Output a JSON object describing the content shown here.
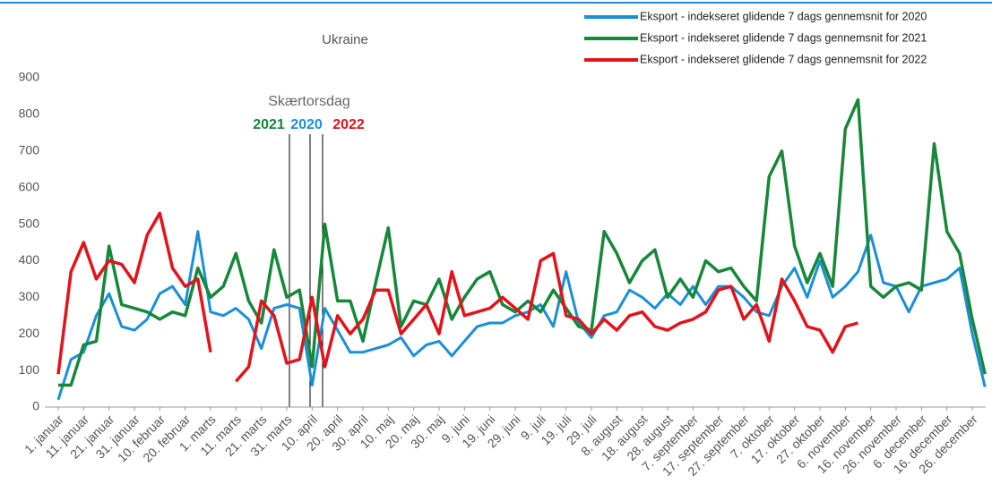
{
  "chart_data": {
    "type": "line",
    "title": "Ukraine",
    "annotation": "Skærtorsdag",
    "annotation_years": [
      {
        "text": "2021",
        "color": "#17873a"
      },
      {
        "text": "2020",
        "color": "#1b8fd6"
      },
      {
        "text": "2022",
        "color": "#e3121b"
      }
    ],
    "categories": [
      "1. januar",
      null,
      "11. januar",
      null,
      "21. januar",
      null,
      "31. januar",
      null,
      "10. februar",
      null,
      "20. februar",
      null,
      "1. marts",
      null,
      "11. marts",
      null,
      "21. marts",
      null,
      "31. marts",
      null,
      "10. april",
      null,
      "20. april",
      null,
      "30. april",
      null,
      "10. maj",
      null,
      "20. maj",
      null,
      "30. maj",
      null,
      "9. juni",
      null,
      "19. juni",
      null,
      "29. juni",
      null,
      "9. juli",
      null,
      "19. juli",
      null,
      "29. juli",
      null,
      "8. august",
      null,
      "18. august",
      null,
      "28. august",
      null,
      "7. september",
      null,
      "17. september",
      null,
      "27. september",
      null,
      "7. oktober",
      null,
      "17. oktober",
      null,
      "27. oktober",
      null,
      "6. november",
      null,
      "16. november",
      null,
      "26. november",
      null,
      "6. december",
      null,
      "16. december",
      null,
      "26. december",
      null
    ],
    "series": [
      {
        "name": "Eksport - indekseret glidende 7 dags gennemsnit for 2020",
        "color": "#1b8fd6",
        "values": [
          20,
          130,
          150,
          250,
          310,
          220,
          210,
          240,
          310,
          330,
          280,
          480,
          260,
          250,
          270,
          240,
          160,
          270,
          280,
          270,
          60,
          270,
          210,
          150,
          150,
          160,
          170,
          190,
          140,
          170,
          180,
          140,
          180,
          220,
          230,
          230,
          250,
          260,
          280,
          220,
          370,
          230,
          190,
          250,
          260,
          320,
          300,
          270,
          310,
          280,
          330,
          280,
          330,
          330,
          300,
          260,
          250,
          330,
          380,
          300,
          400,
          300,
          330,
          370,
          470,
          340,
          330,
          260,
          330,
          340,
          350,
          380,
          200,
          55
        ]
      },
      {
        "name": "Eksport - indekseret glidende 7 dags gennemsnit for 2021",
        "color": "#17873a",
        "values": [
          60,
          60,
          170,
          180,
          440,
          280,
          270,
          260,
          240,
          260,
          250,
          380,
          300,
          330,
          420,
          290,
          230,
          430,
          300,
          320,
          110,
          500,
          290,
          290,
          180,
          340,
          490,
          220,
          290,
          280,
          350,
          240,
          300,
          350,
          370,
          280,
          260,
          290,
          260,
          320,
          270,
          220,
          210,
          480,
          420,
          340,
          400,
          430,
          300,
          350,
          300,
          400,
          370,
          380,
          330,
          290,
          630,
          700,
          440,
          340,
          420,
          330,
          760,
          840,
          330,
          300,
          330,
          340,
          320,
          720,
          480,
          420,
          240,
          90
        ]
      },
      {
        "name": "Eksport - indekseret glidende 7 dags gennemsnit for 2022",
        "color": "#e3121b",
        "values": [
          90,
          370,
          450,
          350,
          400,
          390,
          340,
          470,
          530,
          380,
          330,
          350,
          150,
          null,
          70,
          110,
          290,
          250,
          120,
          130,
          300,
          110,
          250,
          200,
          240,
          320,
          320,
          200,
          240,
          280,
          200,
          370,
          250,
          260,
          270,
          300,
          270,
          240,
          400,
          420,
          250,
          240,
          200,
          240,
          210,
          250,
          260,
          220,
          210,
          230,
          240,
          260,
          320,
          330,
          240,
          280,
          180,
          350,
          290,
          220,
          210,
          150,
          220,
          230,
          null,
          null,
          null,
          null,
          null,
          null,
          null,
          null,
          null,
          null
        ]
      }
    ],
    "ylim": [
      0,
      900
    ],
    "yticks": [
      0,
      100,
      200,
      300,
      400,
      500,
      600,
      700,
      800,
      900
    ],
    "legend": "top-right",
    "grid": false
  }
}
